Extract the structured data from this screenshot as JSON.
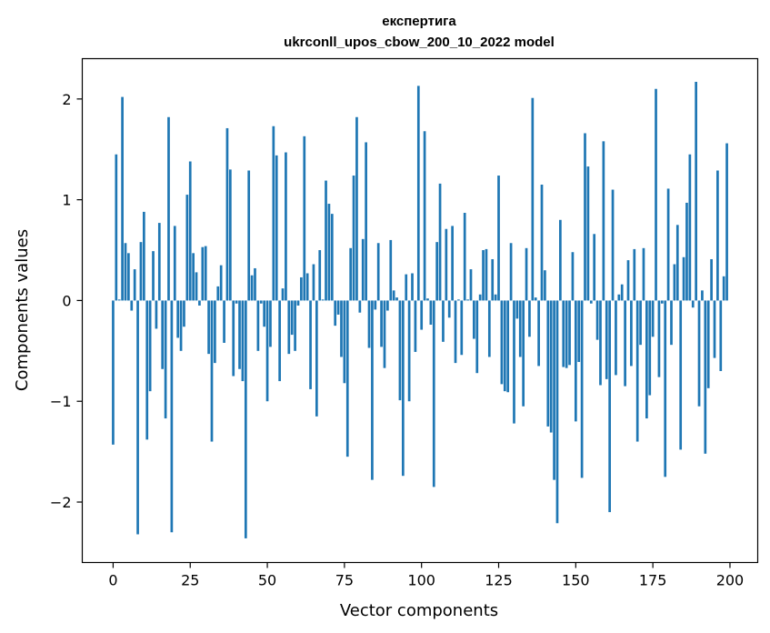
{
  "chart_data": {
    "type": "bar",
    "title": [
      "експертига",
      "ukrconll_upos_cbow_200_10_2022 model"
    ],
    "xlabel": "Vector components",
    "ylabel": "Components values",
    "xlim": [
      -10,
      209
    ],
    "ylim": [
      -2.6,
      2.4
    ],
    "xticks": [
      0,
      25,
      50,
      75,
      100,
      125,
      150,
      175,
      200
    ],
    "xtick_labels": [
      "0",
      "25",
      "50",
      "75",
      "100",
      "125",
      "150",
      "175",
      "200"
    ],
    "yticks": [
      -2,
      -1,
      0,
      1,
      2
    ],
    "ytick_labels": [
      "−2",
      "−1",
      "0",
      "1",
      "2"
    ],
    "bar_color": "#1f77b4",
    "grid": false,
    "values": [
      -1.43,
      1.45,
      0.01,
      2.02,
      0.57,
      0.47,
      -0.1,
      0.31,
      -2.32,
      0.58,
      0.88,
      -1.38,
      -0.9,
      0.49,
      -0.28,
      0.77,
      -0.68,
      -1.17,
      1.82,
      -2.3,
      0.74,
      -0.37,
      -0.5,
      -0.26,
      1.05,
      1.38,
      0.47,
      0.28,
      -0.05,
      0.53,
      0.54,
      -0.53,
      -1.4,
      -0.62,
      0.14,
      0.35,
      -0.42,
      1.71,
      1.3,
      -0.75,
      -0.03,
      -0.68,
      -0.8,
      -2.36,
      1.29,
      0.25,
      0.32,
      -0.5,
      -0.03,
      -0.26,
      -1.0,
      -0.46,
      1.73,
      1.44,
      -0.8,
      0.12,
      1.47,
      -0.53,
      -0.34,
      -0.5,
      -0.05,
      0.23,
      1.63,
      0.27,
      -0.88,
      0.36,
      -1.15,
      0.5,
      0.01,
      1.19,
      0.96,
      0.86,
      -0.25,
      -0.14,
      -0.56,
      -0.82,
      -1.55,
      0.52,
      1.24,
      1.82,
      -0.12,
      0.61,
      1.57,
      -0.47,
      -1.78,
      -0.09,
      0.57,
      -0.46,
      -0.67,
      -0.1,
      0.6,
      0.1,
      0.03,
      -0.99,
      -1.74,
      0.26,
      -1.0,
      0.27,
      -0.51,
      2.13,
      -0.29,
      1.68,
      0.02,
      -0.24,
      -1.85,
      0.58,
      1.16,
      -0.41,
      0.71,
      -0.17,
      0.74,
      -0.62,
      0.01,
      -0.54,
      0.87,
      0.01,
      0.31,
      -0.38,
      -0.72,
      0.06,
      0.5,
      0.51,
      -0.56,
      0.41,
      0.06,
      1.24,
      -0.83,
      -0.9,
      -0.91,
      0.57,
      -1.22,
      -0.18,
      -0.56,
      -1.05,
      0.52,
      -0.36,
      2.01,
      0.03,
      -0.65,
      1.15,
      0.3,
      -1.25,
      -1.31,
      -1.78,
      -2.21,
      0.8,
      -0.66,
      -0.67,
      -0.64,
      0.48,
      -1.2,
      -0.61,
      -1.76,
      1.66,
      1.33,
      -0.03,
      0.66,
      -0.39,
      -0.84,
      1.58,
      -0.78,
      -2.1,
      1.1,
      -0.74,
      0.06,
      0.16,
      -0.85,
      0.4,
      -0.65,
      0.51,
      -1.4,
      -0.44,
      0.52,
      -1.17,
      -0.94,
      -0.36,
      2.1,
      -0.76,
      -0.03,
      -1.75,
      1.11,
      -0.44,
      0.36,
      0.75,
      -1.48,
      0.43,
      0.97,
      1.45,
      -0.07,
      2.17,
      -1.05,
      0.1,
      -1.52,
      -0.87,
      0.41,
      -0.57,
      1.29,
      -0.7,
      0.24,
      1.56
    ]
  }
}
